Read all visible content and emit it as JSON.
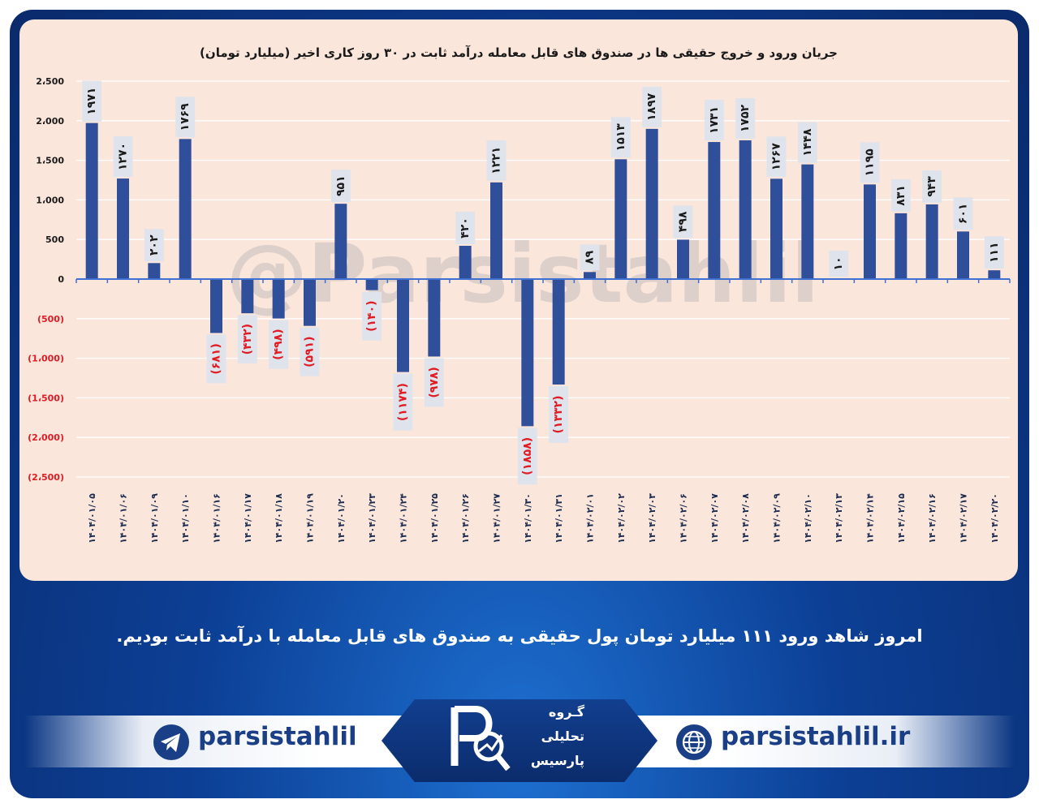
{
  "chart_data": {
    "type": "bar",
    "title": "جریان ورود و خروج حقیقی ها در صندوق های قابل معامله درآمد ثابت در ۳۰ روز کاری اخیر (میلیارد تومان)",
    "watermark": "@Parsistahlil",
    "ylim": [
      -2500,
      2500
    ],
    "yticks": [
      2500,
      2000,
      1500,
      1000,
      500,
      0,
      -500,
      -1000,
      -1500,
      -2000,
      -2500
    ],
    "ytick_labels": [
      "2،500",
      "2،000",
      "1،500",
      "1،000",
      "500",
      "0",
      "(500)",
      "(1،000)",
      "(1،500)",
      "(2،000)",
      "(2،500)"
    ],
    "grid": true,
    "categories": [
      "۱۴۰۴/۰۱/۰۵",
      "۱۴۰۴/۰۱/۰۶",
      "۱۴۰۴/۰۱/۰۹",
      "۱۴۰۴/۰۱/۱۰",
      "۱۴۰۴/۰۱/۱۶",
      "۱۴۰۴/۰۱/۱۷",
      "۱۴۰۴/۰۱/۱۸",
      "۱۴۰۴/۰۱/۱۹",
      "۱۴۰۴/۰۱/۲۰",
      "۱۴۰۴/۰۱/۲۳",
      "۱۴۰۴/۰۱/۲۴",
      "۱۴۰۴/۰۱/۲۵",
      "۱۴۰۴/۰۱/۲۶",
      "۱۴۰۴/۰۱/۲۷",
      "۱۴۰۴/۰۱/۳۰",
      "۱۴۰۴/۰۱/۳۱",
      "۱۴۰۴/۰۲/۰۱",
      "۱۴۰۴/۰۲/۰۲",
      "۱۴۰۴/۰۲/۰۳",
      "۱۴۰۴/۰۲/۰۶",
      "۱۴۰۴/۰۲/۰۷",
      "۱۴۰۴/۰۲/۰۸",
      "۱۴۰۴/۰۲/۰۹",
      "۱۴۰۴/۰۲/۱۰",
      "۱۴۰۴/۰۲/۱۳",
      "۱۴۰۴/۰۲/۱۴",
      "۱۴۰۴/۰۲/۱۵",
      "۱۴۰۴/۰۲/۱۶",
      "۱۴۰۴/۰۲/۱۷",
      "۱۴۰۴/۰۲/۲۰"
    ],
    "values": [
      1971,
      1270,
      202,
      1769,
      -681,
      -432,
      -498,
      -591,
      951,
      -140,
      -1174,
      -978,
      420,
      1221,
      -1858,
      -1332,
      89,
      1513,
      1897,
      498,
      1731,
      1752,
      1267,
      1448,
      10,
      1195,
      831,
      943,
      601,
      111
    ],
    "data_labels": [
      "۱۹۷۱",
      "۱۲۷۰",
      "۲۰۲",
      "۱۷۶۹",
      "(۶۸۱)",
      "(۴۳۲)",
      "(۴۹۸)",
      "(۵۹۱)",
      "۹۵۱",
      "(۱۴۰)",
      "(۱۱۷۴)",
      "(۹۷۸)",
      "۴۲۰",
      "۱۲۲۱",
      "(۱۸۵۸)",
      "(۱۳۳۲)",
      "۸۹",
      "۱۵۱۳",
      "۱۸۹۷",
      "۴۹۸",
      "۱۷۳۱",
      "۱۷۵۲",
      "۱۲۶۷",
      "۱۴۴۸",
      "۱۰",
      "۱۱۹۵",
      "۸۳۱",
      "۹۴۳",
      "۶۰۱",
      "۱۱۱"
    ],
    "colors": {
      "bar": "#2f4f9b",
      "axis": "#3f6fd0",
      "positive_label": "#1a1a1a",
      "negative_label": "#e01b24",
      "label_box": "#dfe3ec",
      "grid": "#ffffff"
    }
  },
  "caption": "امروز شاهد ورود ۱۱۱ میلیارد تومان پول حقیقی به صندوق های قابل معامله با درآمد ثابت بودیم.",
  "footer": {
    "telegram_handle": "parsistahlil",
    "telegram_icon": "telegram-icon",
    "website": "parsistahlil.ir",
    "website_icon": "globe-icon",
    "logo_lines": [
      "گـروه",
      "تحلیلی",
      "پارسیس"
    ]
  }
}
